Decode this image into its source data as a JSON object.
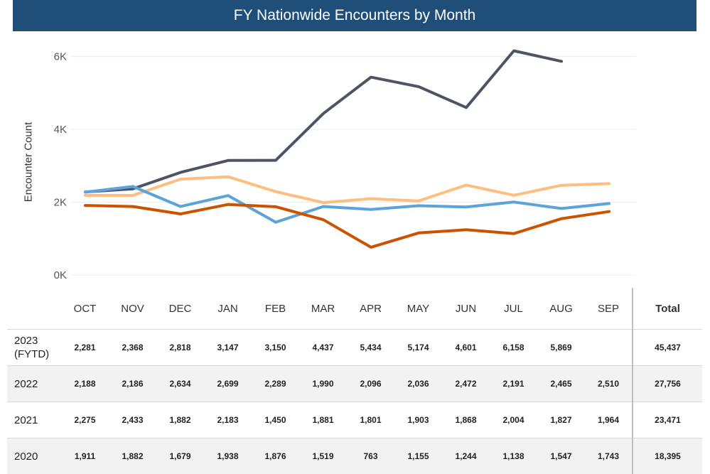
{
  "title": "FY Nationwide Encounters by Month",
  "chart_data": {
    "type": "line",
    "ylabel": "Encounter Count",
    "ylim": [
      0,
      6500
    ],
    "yticks": [
      0,
      2000,
      4000,
      6000
    ],
    "ytick_labels": [
      "0K",
      "2K",
      "4K",
      "6K"
    ],
    "grid": "horizontal",
    "categories": [
      "OCT",
      "NOV",
      "DEC",
      "JAN",
      "FEB",
      "MAR",
      "APR",
      "MAY",
      "JUN",
      "JUL",
      "AUG",
      "SEP"
    ],
    "series": [
      {
        "key": "2023",
        "color": "#4d5563",
        "values": [
          2281,
          2368,
          2818,
          3147,
          3150,
          4437,
          5434,
          5174,
          4601,
          6158,
          5869,
          null
        ]
      },
      {
        "key": "2022",
        "color": "#ffbd80",
        "values": [
          2188,
          2186,
          2634,
          2699,
          2289,
          1990,
          2096,
          2036,
          2472,
          2191,
          2465,
          2510
        ]
      },
      {
        "key": "2021",
        "color": "#5ba3d9",
        "values": [
          2275,
          2433,
          1882,
          2183,
          1450,
          1881,
          1801,
          1903,
          1868,
          2004,
          1827,
          1964
        ]
      },
      {
        "key": "2020",
        "color": "#cc5200",
        "values": [
          1911,
          1882,
          1679,
          1938,
          1876,
          1519,
          763,
          1155,
          1244,
          1138,
          1547,
          1743
        ]
      }
    ]
  },
  "table": {
    "total_header": "Total",
    "rows": [
      {
        "year": "2023 (FYTD)",
        "values": [
          "2,281",
          "2,368",
          "2,818",
          "3,147",
          "3,150",
          "4,437",
          "5,434",
          "5,174",
          "4,601",
          "6,158",
          "5,869",
          ""
        ],
        "total": "45,437"
      },
      {
        "year": "2022",
        "values": [
          "2,188",
          "2,186",
          "2,634",
          "2,699",
          "2,289",
          "1,990",
          "2,096",
          "2,036",
          "2,472",
          "2,191",
          "2,465",
          "2,510"
        ],
        "total": "27,756"
      },
      {
        "year": "2021",
        "values": [
          "2,275",
          "2,433",
          "1,882",
          "2,183",
          "1,450",
          "1,881",
          "1,801",
          "1,903",
          "1,868",
          "2,004",
          "1,827",
          "1,964"
        ],
        "total": "23,471"
      },
      {
        "year": "2020",
        "values": [
          "1,911",
          "1,882",
          "1,679",
          "1,938",
          "1,876",
          "1,519",
          "763",
          "1,155",
          "1,244",
          "1,138",
          "1,547",
          "1,743"
        ],
        "total": "18,395"
      }
    ]
  }
}
